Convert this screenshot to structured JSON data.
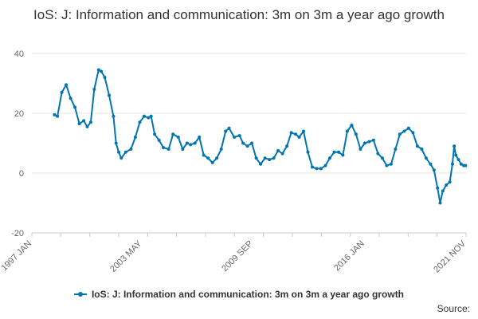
{
  "chart_data": {
    "type": "line",
    "title": "IoS: J: Information and communication: 3m on 3m a year ago growth",
    "xlabel": "",
    "ylabel": "",
    "ylim": [
      -20,
      40
    ],
    "yticks": [
      40,
      20,
      0,
      -20
    ],
    "xlim": [
      1997.04,
      2021.83
    ],
    "xticks": [
      {
        "label": "1997 JAN",
        "x": 1997.04
      },
      {
        "label": "2003 MAY",
        "x": 2003.33
      },
      {
        "label": "2009 SEP",
        "x": 2009.67
      },
      {
        "label": "2016 JAN",
        "x": 2016.04
      },
      {
        "label": "2021 NOV",
        "x": 2021.83
      }
    ],
    "grid": true,
    "legend_position": "bottom",
    "colors": {
      "series": "#0075b0",
      "grid": "#e6e6e6",
      "text": "#666666"
    },
    "series": [
      {
        "name": "IoS: J: Information and communication: 3m on 3m a year ago growth",
        "x": [
          1998.33,
          1998.5,
          1998.75,
          1999.0,
          1999.25,
          1999.5,
          1999.75,
          2000.0,
          2000.2,
          2000.4,
          2000.6,
          2000.85,
          2001.0,
          2001.2,
          2001.45,
          2001.7,
          2001.85,
          2002.0,
          2002.15,
          2002.4,
          2002.7,
          2002.95,
          2003.2,
          2003.45,
          2003.7,
          2003.85,
          2004.05,
          2004.3,
          2004.55,
          2004.85,
          2005.1,
          2005.4,
          2005.65,
          2005.9,
          2006.1,
          2006.35,
          2006.6,
          2006.85,
          2007.1,
          2007.35,
          2007.6,
          2007.85,
          2008.1,
          2008.3,
          2008.6,
          2008.9,
          2009.1,
          2009.35,
          2009.6,
          2009.85,
          2010.1,
          2010.35,
          2010.6,
          2010.85,
          2011.1,
          2011.35,
          2011.6,
          2011.85,
          2012.1,
          2012.3,
          2012.55,
          2012.8,
          2013.05,
          2013.3,
          2013.55,
          2013.8,
          2014.05,
          2014.3,
          2014.55,
          2014.8,
          2015.05,
          2015.3,
          2015.55,
          2015.8,
          2016.05,
          2016.3,
          2016.55,
          2016.8,
          2017.05,
          2017.3,
          2017.55,
          2017.8,
          2018.05,
          2018.3,
          2018.55,
          2018.8,
          2019.05,
          2019.3,
          2019.55,
          2019.8,
          2020.0,
          2020.2,
          2020.35,
          2020.5,
          2020.7,
          2020.9,
          2021.05,
          2021.15,
          2021.25,
          2021.4,
          2021.55,
          2021.7,
          2021.8
        ],
        "values": [
          19.5,
          19,
          27,
          29.5,
          25,
          22,
          16.5,
          17.5,
          15.5,
          17,
          28,
          34.5,
          34,
          32,
          26,
          19,
          10,
          7,
          5,
          7,
          8,
          12,
          17,
          19,
          18.5,
          19,
          13,
          11,
          8.5,
          8,
          13,
          12,
          8,
          10,
          9.5,
          10,
          12,
          6,
          5,
          3.5,
          5,
          8,
          14,
          15,
          12,
          12.5,
          10,
          9,
          10,
          5,
          3,
          5,
          4.5,
          5,
          7.5,
          6.5,
          9,
          13.5,
          13,
          12,
          14,
          7,
          2,
          1.5,
          1.5,
          2.5,
          5,
          7,
          7,
          6,
          14,
          16,
          13,
          8,
          10,
          10.5,
          11,
          6.5,
          5,
          2.5,
          3,
          8,
          13,
          14,
          15,
          13.5,
          9,
          8,
          5,
          3,
          1,
          -5,
          -10,
          -6,
          -4,
          -3,
          3,
          9,
          6,
          4.5,
          3,
          2.5,
          2.5
        ]
      }
    ]
  },
  "source_label": "Source:"
}
